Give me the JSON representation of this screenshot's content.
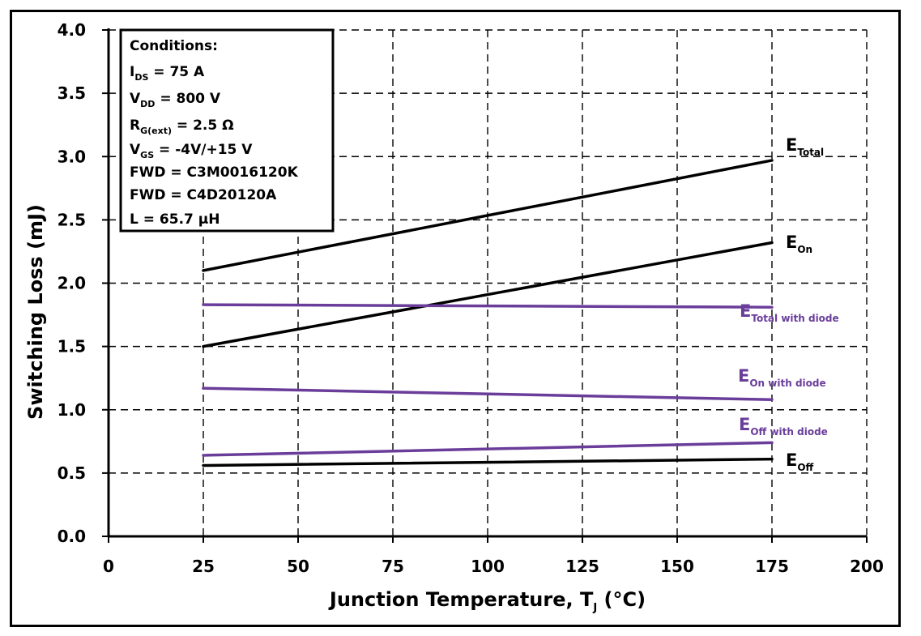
{
  "chart_data": {
    "type": "line",
    "title": "",
    "xlabel": "Junction Temperature, T",
    "xlabel_sub": "J",
    "xlabel_unit": " (°C)",
    "ylabel": "Switching Loss (mJ)",
    "xlim": [
      0,
      200
    ],
    "ylim": [
      0.0,
      4.0
    ],
    "x_ticks": [
      "0",
      "25",
      "50",
      "75",
      "100",
      "125",
      "150",
      "175",
      "200"
    ],
    "y_ticks": [
      "0.0",
      "0.5",
      "1.0",
      "1.5",
      "2.0",
      "2.5",
      "3.0",
      "3.5",
      "4.0"
    ],
    "grid": true,
    "legend_placement": "top-left",
    "conditions": [
      "Conditions:",
      "I_DS = 75 A",
      "V_DD = 800 V",
      "R_G(ext) = 2.5 Ω",
      "V_GS = -4V/+15 V",
      "FWD = C3M0016120K",
      "FWD = C4D20120A",
      "L = 65.7 μH"
    ],
    "conditions_display": [
      {
        "main": "Conditions:",
        "sub": "",
        "rest": ""
      },
      {
        "main": "I",
        "sub": "DS",
        "rest": " = 75 A"
      },
      {
        "main": "V",
        "sub": "DD",
        "rest": " = 800 V"
      },
      {
        "main": "R",
        "sub": "G(ext)",
        "rest": " = 2.5 Ω"
      },
      {
        "main": "V",
        "sub": "GS",
        "rest": " = -4V/+15 V"
      },
      {
        "main": "FWD = C3M0016120K",
        "sub": "",
        "rest": ""
      },
      {
        "main": "FWD = C4D20120A",
        "sub": "",
        "rest": ""
      },
      {
        "main": "L = 65.7 μH",
        "sub": "",
        "rest": ""
      }
    ],
    "series": [
      {
        "name": "ETotal",
        "label_main": "E",
        "label_sub": "Total",
        "color": "#000000",
        "x": [
          25,
          175
        ],
        "y": [
          2.1,
          2.97
        ]
      },
      {
        "name": "EOn",
        "label_main": "E",
        "label_sub": "On",
        "color": "#000000",
        "x": [
          25,
          175
        ],
        "y": [
          1.5,
          2.32
        ]
      },
      {
        "name": "ETotal with diode",
        "label_main": "E",
        "label_sub": "Total with diode",
        "color": "#6a3d9a",
        "x": [
          25,
          175
        ],
        "y": [
          1.83,
          1.81
        ]
      },
      {
        "name": "EOn with diode",
        "label_main": "E",
        "label_sub": "On with diode",
        "color": "#6a3d9a",
        "x": [
          25,
          175
        ],
        "y": [
          1.17,
          1.08
        ]
      },
      {
        "name": "EOff with diode",
        "label_main": "E",
        "label_sub": "Off with diode",
        "color": "#6a3d9a",
        "x": [
          25,
          175
        ],
        "y": [
          0.64,
          0.74
        ]
      },
      {
        "name": "EOff",
        "label_main": "E",
        "label_sub": "Off",
        "color": "#000000",
        "x": [
          25,
          175
        ],
        "y": [
          0.56,
          0.61
        ]
      }
    ]
  }
}
